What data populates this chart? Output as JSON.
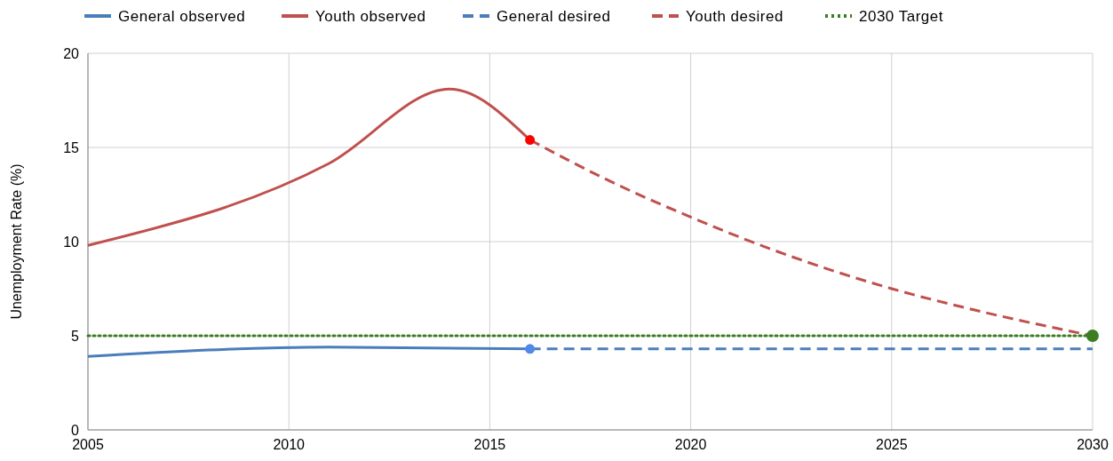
{
  "chart_data": {
    "type": "line",
    "ylabel": "Unemployment Rate (%)",
    "xlim": [
      2005,
      2030
    ],
    "xticks": [
      2005,
      2010,
      2015,
      2020,
      2025,
      2030
    ],
    "ylim": [
      0,
      20
    ],
    "yticks": [
      0,
      5,
      10,
      15,
      20
    ],
    "grid": true,
    "legend": "top",
    "series": [
      {
        "name": "General observed",
        "color": "#4a7ebb",
        "line_style": "solid",
        "x": [
          2005,
          2011,
          2016
        ],
        "values": [
          3.9,
          4.4,
          4.3
        ]
      },
      {
        "name": "Youth observed",
        "color": "#c0504d",
        "line_style": "solid",
        "x": [
          2005,
          2011,
          2014,
          2016
        ],
        "values": [
          9.8,
          14.15,
          18.1,
          15.4
        ]
      },
      {
        "name": "General desired",
        "color": "#4a7ebb",
        "line_style": "dashed",
        "x": [
          2016,
          2030
        ],
        "values": [
          4.3,
          4.3
        ]
      },
      {
        "name": "Youth desired",
        "color": "#c0504d",
        "line_style": "dashed",
        "x": [
          2016,
          2018,
          2020,
          2022,
          2025,
          2027,
          2030
        ],
        "values": [
          15.4,
          13.2,
          11.3,
          9.6,
          7.5,
          6.4,
          5
        ]
      },
      {
        "name": "2030 Target",
        "color": "#3b7d23",
        "line_style": "dotted",
        "x": [
          2005,
          2030
        ],
        "values": [
          5,
          5
        ]
      },
      {
        "type": "scatter",
        "color": "#ff0000",
        "x": [
          2016
        ],
        "values": [
          15.4
        ]
      },
      {
        "type": "scatter",
        "color": "#4f8ae8",
        "x": [
          2016
        ],
        "values": [
          4.3
        ]
      },
      {
        "type": "scatter",
        "color": "#3b7d23",
        "x": [
          2030
        ],
        "values": [
          5
        ]
      }
    ]
  }
}
